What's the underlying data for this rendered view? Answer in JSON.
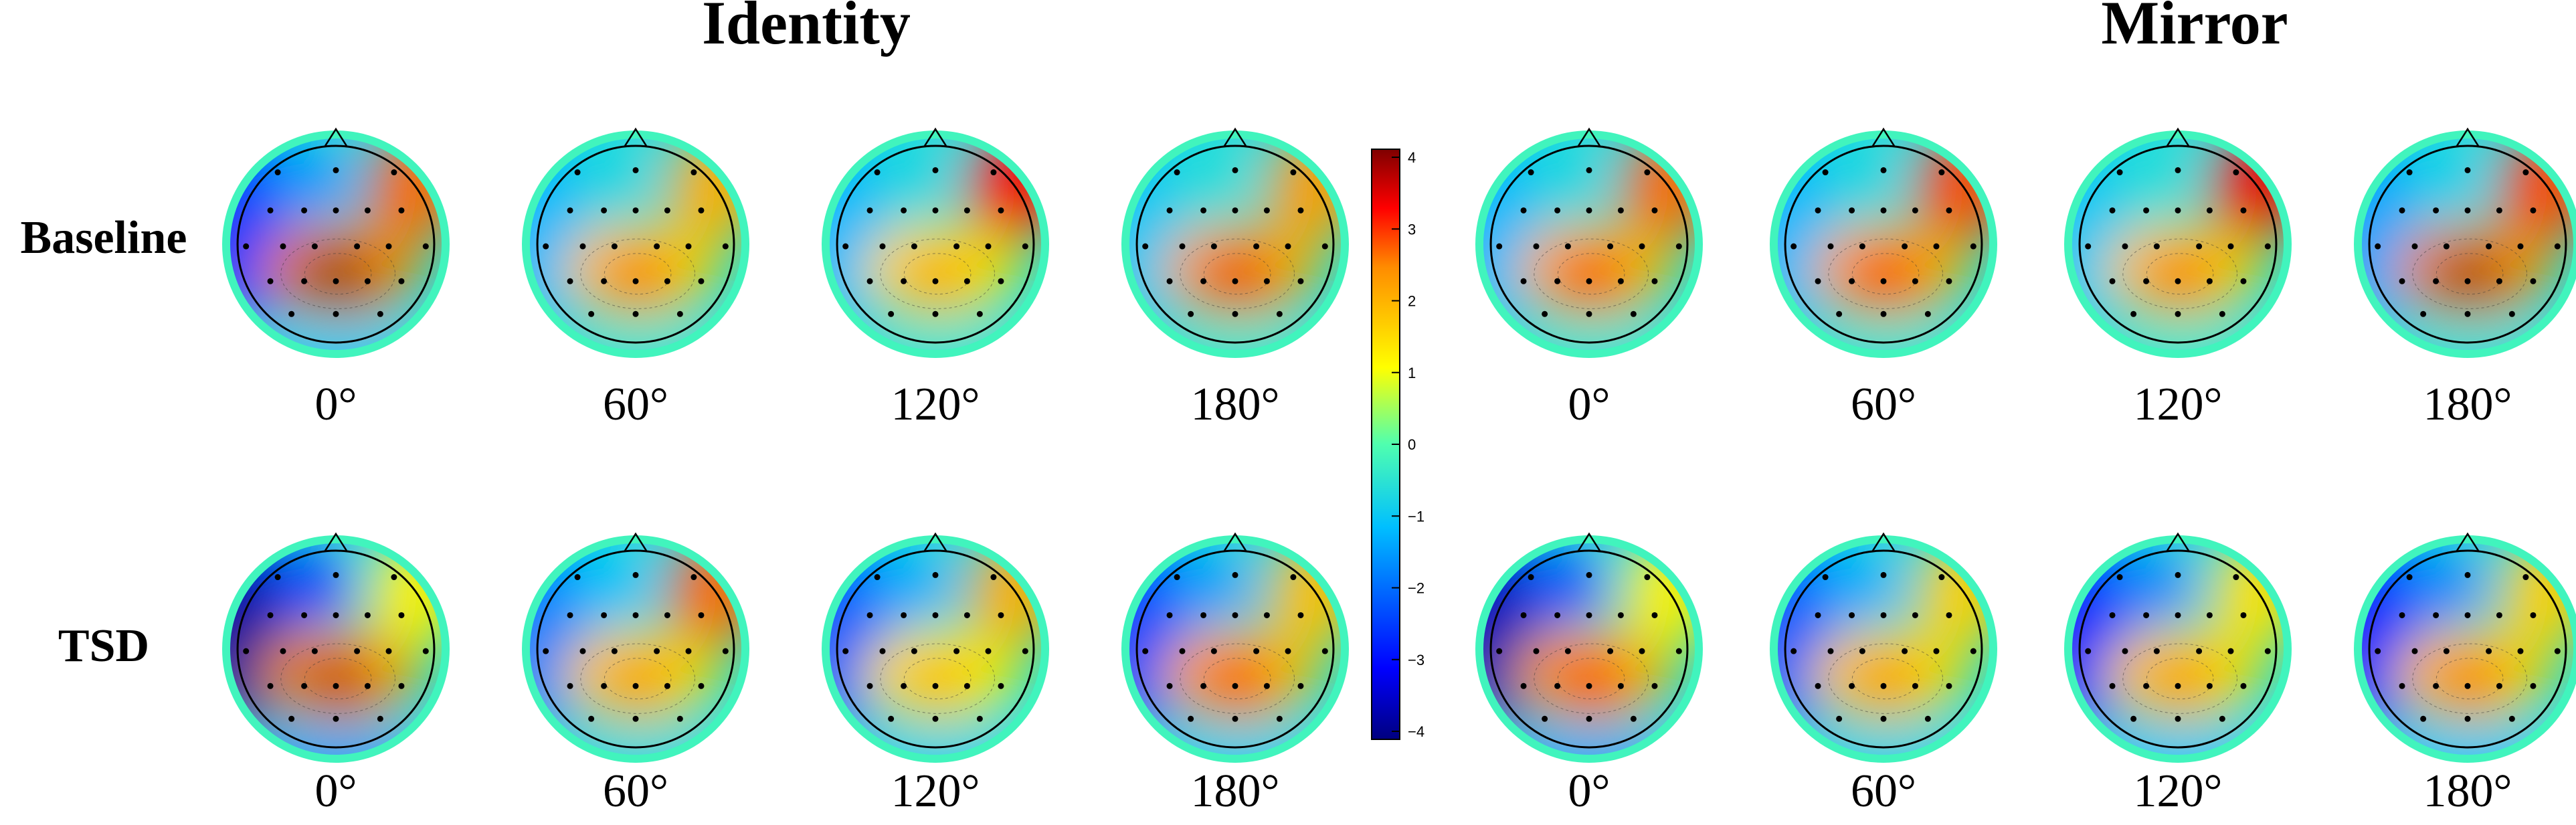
{
  "figure": {
    "groups": [
      {
        "title": "Identity"
      },
      {
        "title": "Mirror"
      }
    ],
    "rows": [
      {
        "label": "Baseline"
      },
      {
        "label": "TSD"
      }
    ],
    "angles": [
      "0°",
      "60°",
      "120°",
      "180°"
    ]
  },
  "chart_data": {
    "type": "heatmap",
    "description_of_panels": "16 scalp topographic maps: 2 conditions (Identity, Mirror) x 2 sessions (Baseline, TSD) x 4 rotation angles",
    "colorbar": {
      "ticks": [
        "4",
        "3",
        "2",
        "1",
        "0",
        "−1",
        "−2",
        "−3",
        "−4"
      ],
      "range": [
        -4,
        4
      ],
      "colormap": [
        "#00007f",
        "#0000ff",
        "#00bfff",
        "#4fffaf",
        "#ffff00",
        "#ff8c00",
        "#ff0000",
        "#7f0000"
      ]
    },
    "panels": [
      {
        "group": "Identity",
        "row": "Baseline",
        "angle": "0°",
        "peak": 4.0,
        "right_frontal": 2.6,
        "left": -2.5
      },
      {
        "group": "Identity",
        "row": "Baseline",
        "angle": "60°",
        "peak": 2.6,
        "right_frontal": 2.0,
        "left": -1.2
      },
      {
        "group": "Identity",
        "row": "Baseline",
        "angle": "120°",
        "peak": 2.2,
        "right_frontal": 3.2,
        "left": -1.2
      },
      {
        "group": "Identity",
        "row": "Baseline",
        "angle": "180°",
        "peak": 3.3,
        "right_frontal": 2.2,
        "left": -1.0
      },
      {
        "group": "Mirror",
        "row": "Baseline",
        "angle": "0°",
        "peak": 3.0,
        "right_frontal": 2.6,
        "left": -1.2
      },
      {
        "group": "Mirror",
        "row": "Baseline",
        "angle": "60°",
        "peak": 3.2,
        "right_frontal": 2.8,
        "left": -1.2
      },
      {
        "group": "Mirror",
        "row": "Baseline",
        "angle": "120°",
        "peak": 2.6,
        "right_frontal": 3.3,
        "left": -1.0
      },
      {
        "group": "Mirror",
        "row": "Baseline",
        "angle": "180°",
        "peak": 3.8,
        "right_frontal": 2.8,
        "left": -1.4
      },
      {
        "group": "Identity",
        "row": "TSD",
        "angle": "0°",
        "peak": 3.6,
        "right_frontal": 1.2,
        "left": -3.8
      },
      {
        "group": "Identity",
        "row": "TSD",
        "angle": "60°",
        "peak": 2.4,
        "right_frontal": 2.6,
        "left": -1.8
      },
      {
        "group": "Identity",
        "row": "TSD",
        "angle": "120°",
        "peak": 2.0,
        "right_frontal": 2.0,
        "left": -2.2
      },
      {
        "group": "Identity",
        "row": "TSD",
        "angle": "180°",
        "peak": 3.0,
        "right_frontal": 1.8,
        "left": -2.4
      },
      {
        "group": "Mirror",
        "row": "TSD",
        "angle": "0°",
        "peak": 3.2,
        "right_frontal": 1.2,
        "left": -3.6
      },
      {
        "group": "Mirror",
        "row": "TSD",
        "angle": "60°",
        "peak": 2.4,
        "right_frontal": 1.6,
        "left": -2.2
      },
      {
        "group": "Mirror",
        "row": "TSD",
        "angle": "120°",
        "peak": 2.4,
        "right_frontal": 1.4,
        "left": -2.8
      },
      {
        "group": "Mirror",
        "row": "TSD",
        "angle": "180°",
        "peak": 2.6,
        "right_frontal": 1.6,
        "left": -2.8
      }
    ]
  }
}
